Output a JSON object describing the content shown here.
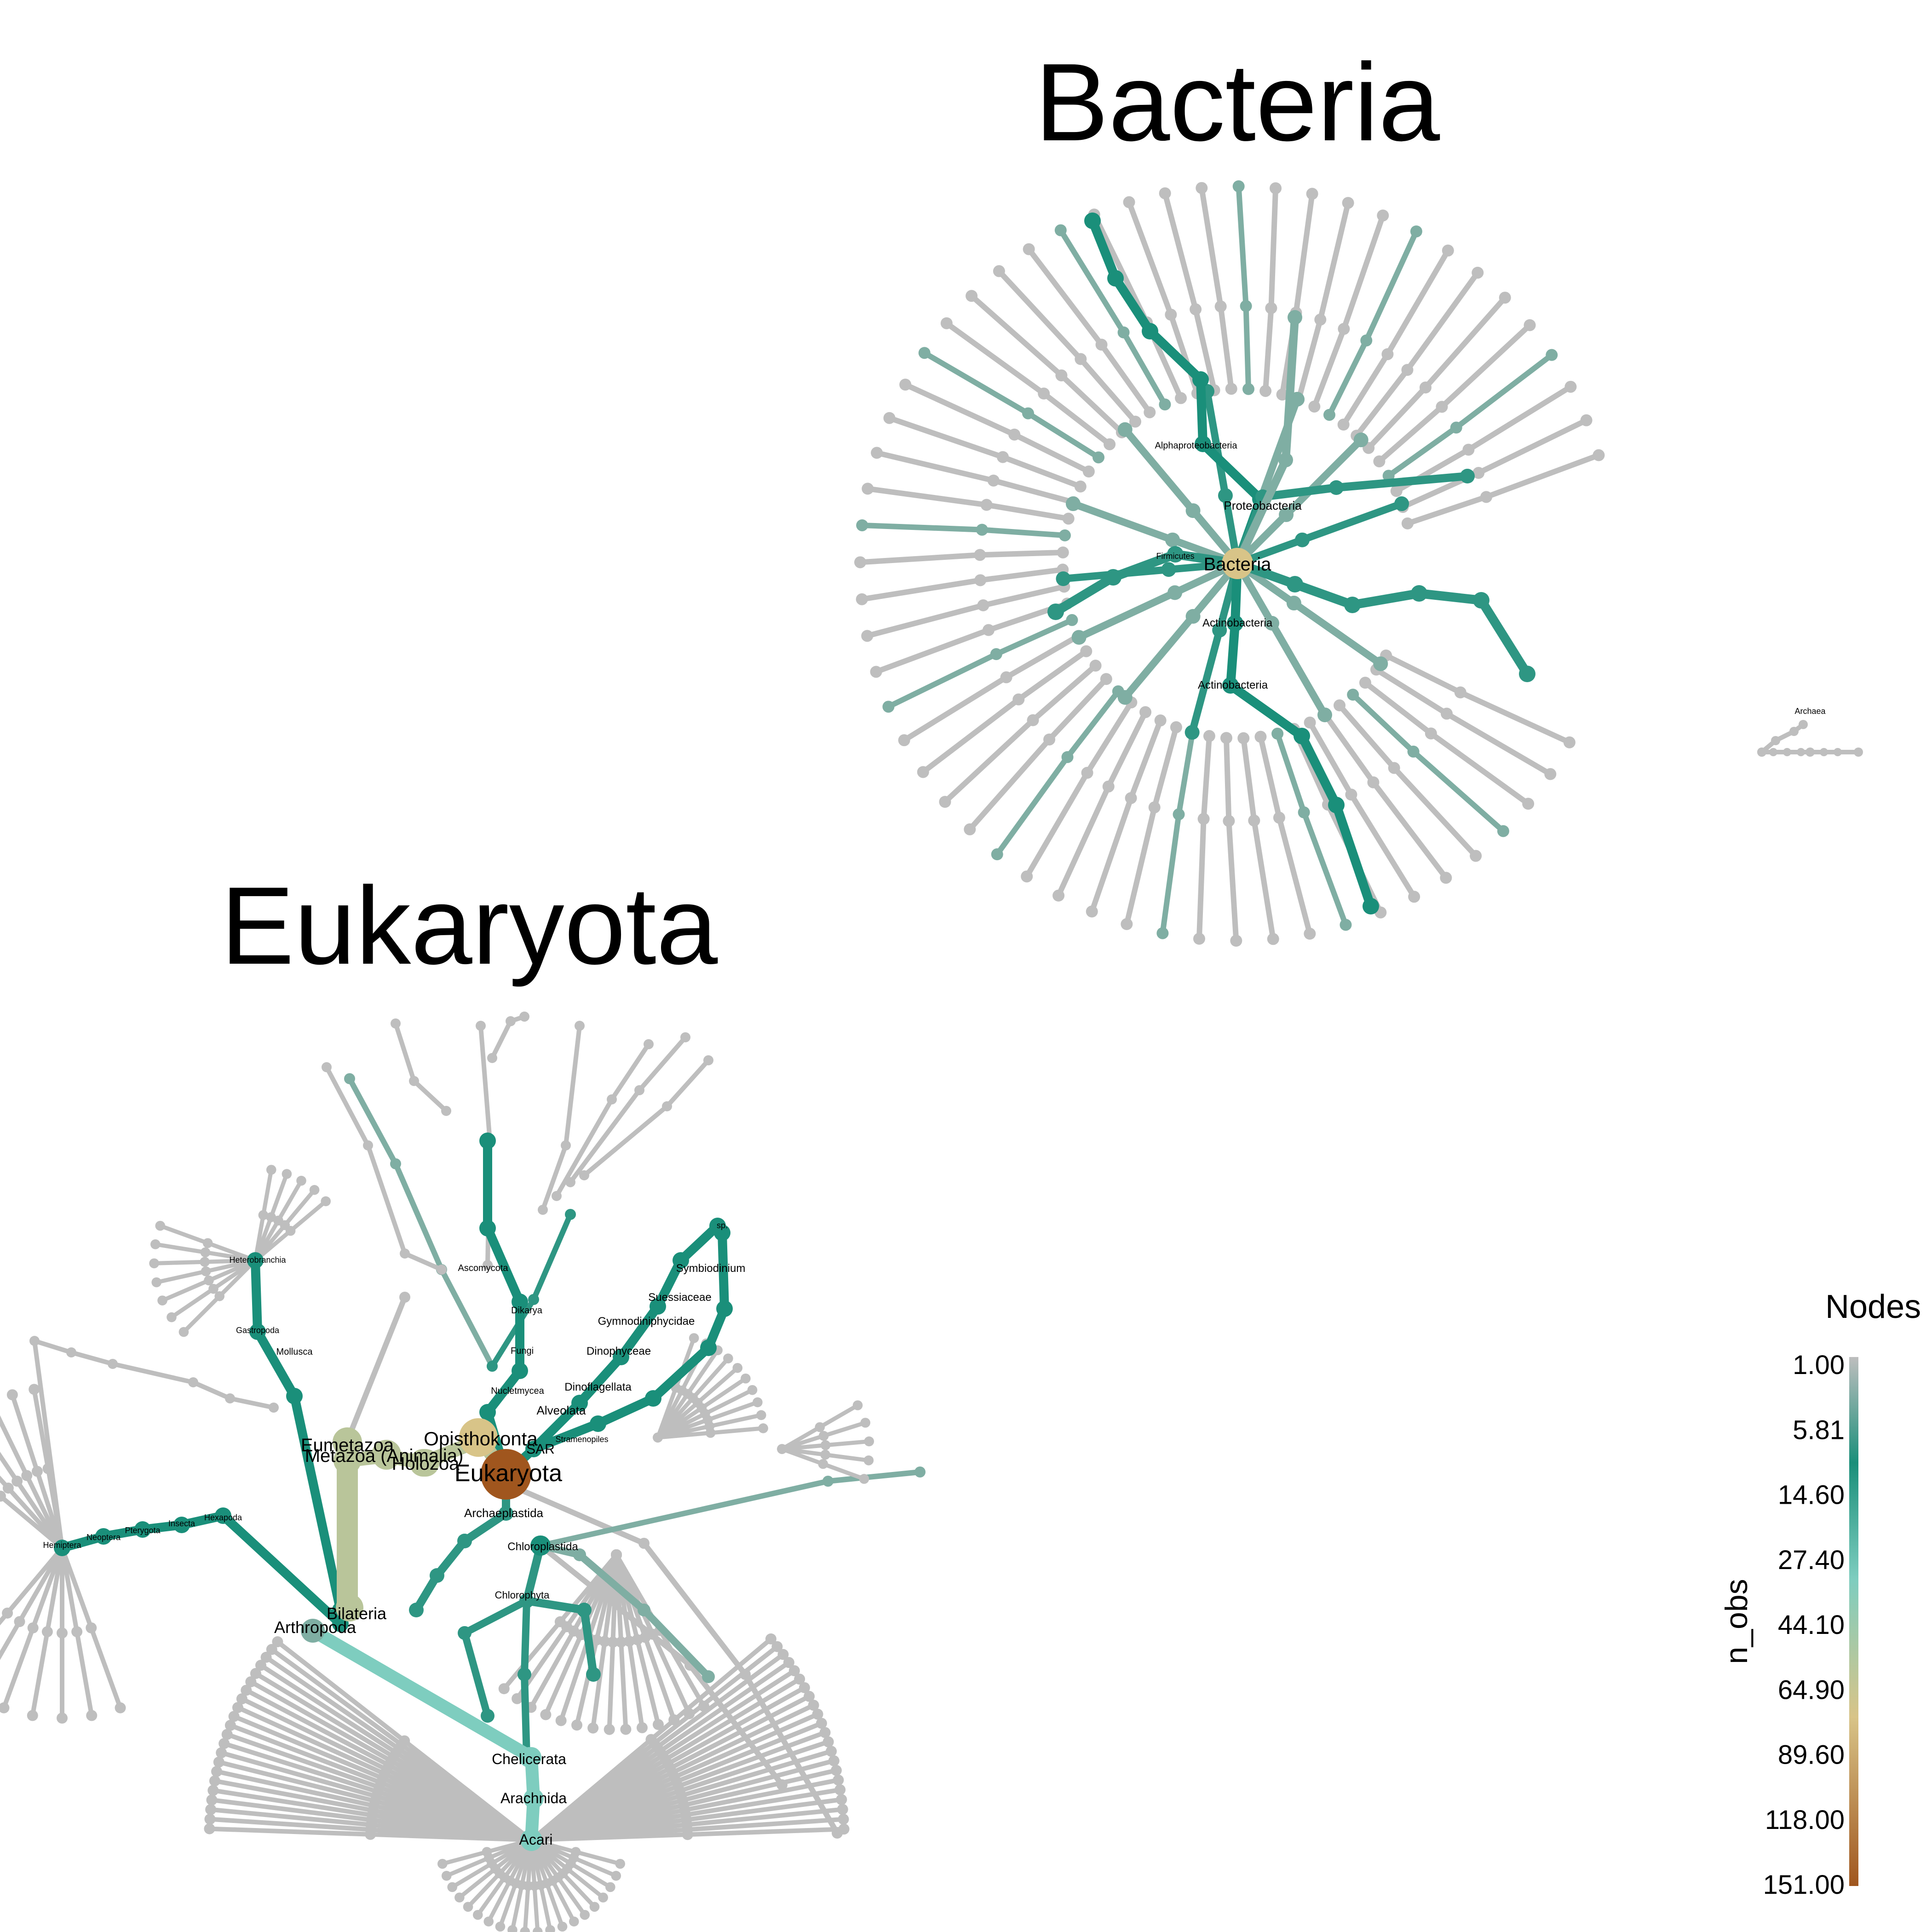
{
  "titles": {
    "bacteria": "Bacteria",
    "eukaryota": "Eukaryota"
  },
  "legend": {
    "title": "Nodes",
    "axis_label": "n_obs",
    "ticks": [
      "1.00",
      "5.81",
      "14.60",
      "27.40",
      "44.10",
      "64.90",
      "89.60",
      "118.00",
      "151.00"
    ],
    "colors": [
      "#BEBEBE",
      "#1A8F7A",
      "#7ECDBF",
      "#D8C488",
      "#A0561E"
    ]
  },
  "bacteria_labels": {
    "bacteria": "Bacteria",
    "proteobacteria": "Proteobacteria",
    "alphaproteobacteria": "Alphaproteobacteria",
    "firmicutes": "Firmicutes",
    "actinobacteria_1": "Actinobacteria",
    "actinobacteria_2": "Actinobacteria",
    "archaea": "Archaea"
  },
  "eukaryota_labels": {
    "eukaryota": "Eukaryota",
    "opisthokonta": "Opisthokonta",
    "sar": "SAR",
    "holozoa": "Holozoa",
    "metazoa": "Metazoa (Animalia)",
    "eumetazoa": "Eumetazoa",
    "bilateria": "Bilateria",
    "arthropoda": "Arthropoda",
    "chelicerata": "Chelicerata",
    "arachnida": "Arachnida",
    "acari": "Acari",
    "archaeplastida": "Archaeplastida",
    "chloroplastida": "Chloroplastida",
    "chlorophyta": "Chlorophyta",
    "nucletmycea": "Nucletmycea",
    "fungi": "Fungi",
    "dikarya": "Dikarya",
    "ascomycota": "Ascomycota",
    "alveolata": "Alveolata",
    "dinoflagellata": "Dinoflagellata",
    "dinophyceae": "Dinophyceae",
    "gymnodiniphycidae": "Gymnodiniphycidae",
    "suessiaceae": "Suessiaceae",
    "symbiodinium": "Symbiodinium",
    "sp": "sp.",
    "stramenopiles": "Stramenopiles",
    "mollusca": "Mollusca",
    "gastropoda": "Gastropoda",
    "heterobranchia": "Heterobranchia",
    "hexapoda": "Hexapoda",
    "insecta": "Insecta",
    "pterygota": "Pterygota",
    "neoptera": "Neoptera",
    "hemiptera": "Hemiptera"
  }
}
